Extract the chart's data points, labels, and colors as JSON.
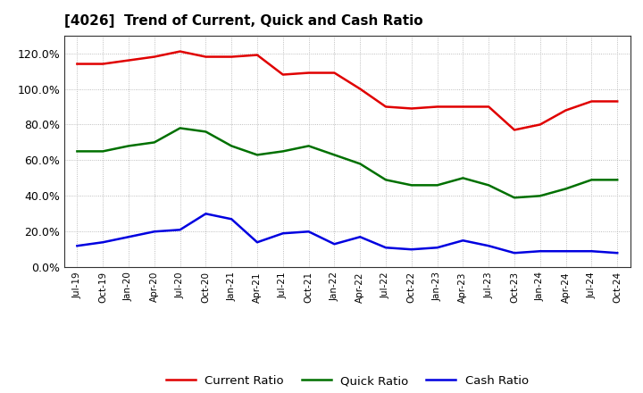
{
  "title": "[4026]  Trend of Current, Quick and Cash Ratio",
  "labels": [
    "Jul-19",
    "Oct-19",
    "Jan-20",
    "Apr-20",
    "Jul-20",
    "Oct-20",
    "Jan-21",
    "Apr-21",
    "Jul-21",
    "Oct-21",
    "Jan-22",
    "Apr-22",
    "Jul-22",
    "Oct-22",
    "Jan-23",
    "Apr-23",
    "Jul-23",
    "Oct-23",
    "Jan-24",
    "Apr-24",
    "Jul-24",
    "Oct-24"
  ],
  "current_ratio": [
    1.14,
    1.14,
    1.16,
    1.18,
    1.21,
    1.18,
    1.18,
    1.19,
    1.08,
    1.09,
    1.09,
    1.0,
    0.9,
    0.89,
    0.9,
    0.9,
    0.9,
    0.77,
    0.8,
    0.88,
    0.93,
    0.93
  ],
  "quick_ratio": [
    0.65,
    0.65,
    0.68,
    0.7,
    0.78,
    0.76,
    0.68,
    0.63,
    0.65,
    0.68,
    0.63,
    0.58,
    0.49,
    0.46,
    0.46,
    0.5,
    0.46,
    0.39,
    0.4,
    0.44,
    0.49,
    0.49
  ],
  "cash_ratio": [
    0.12,
    0.14,
    0.17,
    0.2,
    0.21,
    0.3,
    0.27,
    0.14,
    0.19,
    0.2,
    0.13,
    0.17,
    0.11,
    0.1,
    0.11,
    0.15,
    0.12,
    0.08,
    0.09,
    0.09,
    0.09,
    0.08
  ],
  "current_color": "#e00000",
  "quick_color": "#007000",
  "cash_color": "#0000e0",
  "ylim": [
    0.0,
    1.3
  ],
  "yticks": [
    0.0,
    0.2,
    0.4,
    0.6,
    0.8,
    1.0,
    1.2
  ],
  "background_color": "#ffffff",
  "grid_color": "#aaaaaa",
  "legend_labels": [
    "Current Ratio",
    "Quick Ratio",
    "Cash Ratio"
  ]
}
